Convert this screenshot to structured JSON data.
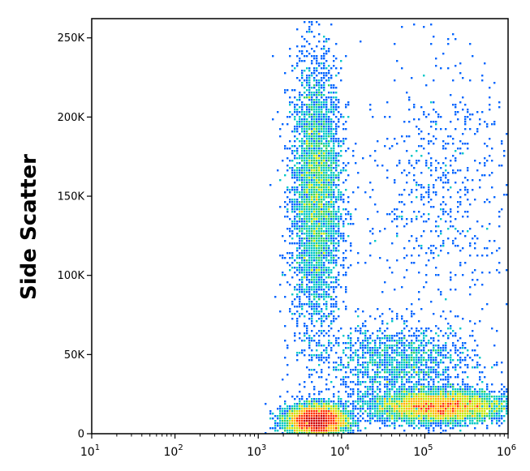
{
  "chart_data": {
    "type": "scatter",
    "style": "flow-cytometry density dot plot",
    "title": "",
    "xlabel": "",
    "ylabel": "Side Scatter",
    "x_scale": "log",
    "xlim": [
      10,
      1000000
    ],
    "ylim": [
      0,
      262144
    ],
    "x_ticks": [
      {
        "value": 10,
        "base": "10",
        "exp": "1"
      },
      {
        "value": 100,
        "base": "10",
        "exp": "2"
      },
      {
        "value": 1000,
        "base": "10",
        "exp": "3"
      },
      {
        "value": 10000,
        "base": "10",
        "exp": "4"
      },
      {
        "value": 100000,
        "base": "10",
        "exp": "5"
      },
      {
        "value": 1000000,
        "base": "10",
        "exp": "6"
      }
    ],
    "y_ticks": [
      {
        "value": 0,
        "label": "0"
      },
      {
        "value": 50000,
        "label": "50K"
      },
      {
        "value": 100000,
        "label": "100K"
      },
      {
        "value": 150000,
        "label": "150K"
      },
      {
        "value": 200000,
        "label": "200K"
      },
      {
        "value": 250000,
        "label": "250K"
      }
    ],
    "density_colors": [
      "#0000c8",
      "#0064ff",
      "#00c8c8",
      "#32d264",
      "#c8e600",
      "#ffb400",
      "#ff3200",
      "#d20000"
    ],
    "populations": [
      {
        "center_x": 5000,
        "center_y": 150000,
        "spread_log_x": 0.15,
        "spread_y": 42000,
        "density": "high"
      },
      {
        "center_x": 5000,
        "center_y": 8000,
        "spread_log_x": 0.18,
        "spread_y": 5000,
        "density": "very high"
      },
      {
        "center_x": 150000,
        "center_y": 17000,
        "spread_log_x": 0.4,
        "spread_y": 5000,
        "density": "very high"
      },
      {
        "center_x": 50000,
        "center_y": 45000,
        "spread_log_x": 0.45,
        "spread_y": 12000,
        "density": "medium"
      },
      {
        "center_x": 150000,
        "center_y": 155000,
        "spread_log_x": 0.45,
        "spread_y": 40000,
        "density": "low"
      }
    ]
  }
}
